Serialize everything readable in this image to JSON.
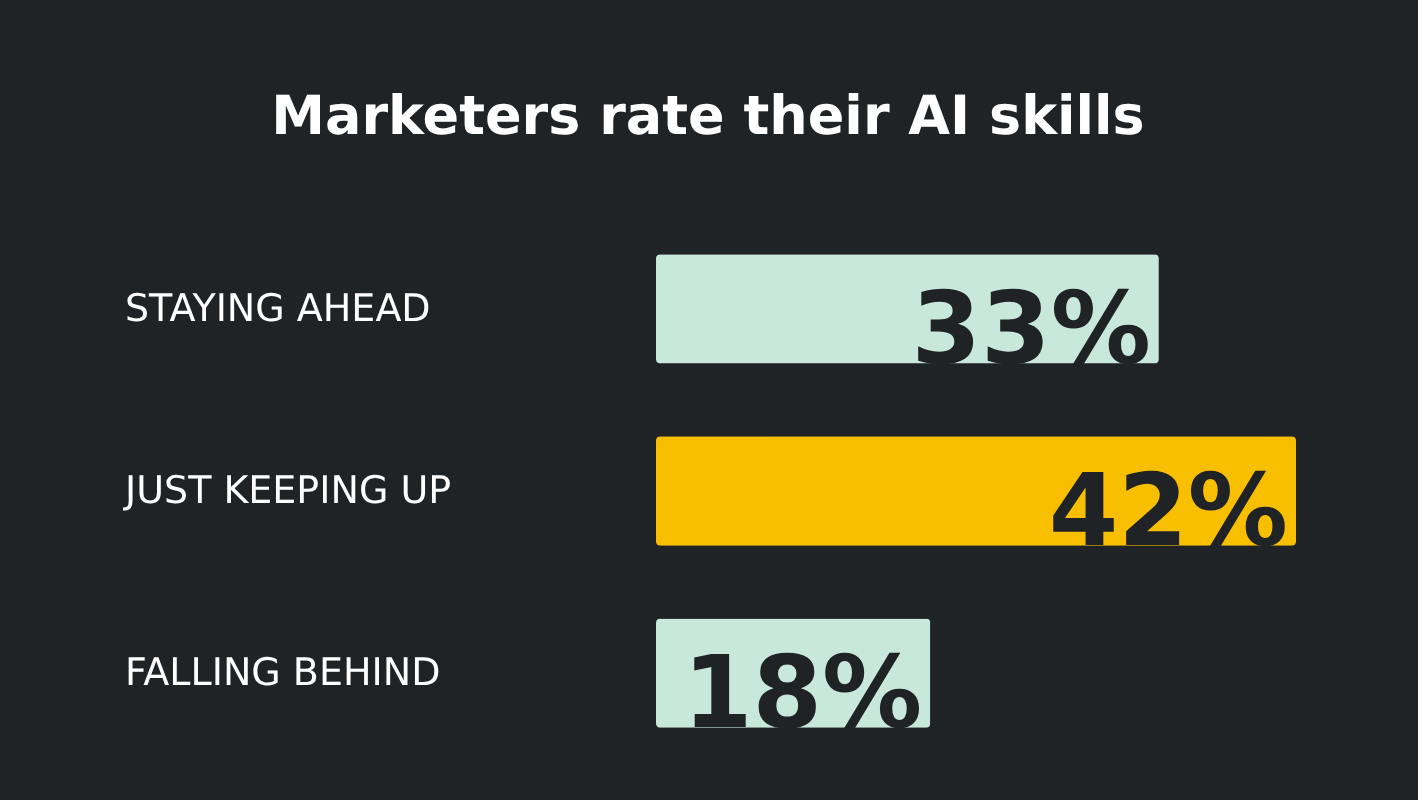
{
  "chart_data": {
    "type": "bar",
    "orientation": "horizontal",
    "title": "Marketers rate their AI skills",
    "categories": [
      "STAYING AHEAD",
      "JUST KEEPING UP",
      "FALLING BEHIND"
    ],
    "values": [
      33,
      42,
      18
    ],
    "colors": [
      "#c9e8dc",
      "#f7bf00",
      "#c9e8dc"
    ],
    "value_labels": [
      "33%",
      "42%",
      "18%"
    ]
  }
}
